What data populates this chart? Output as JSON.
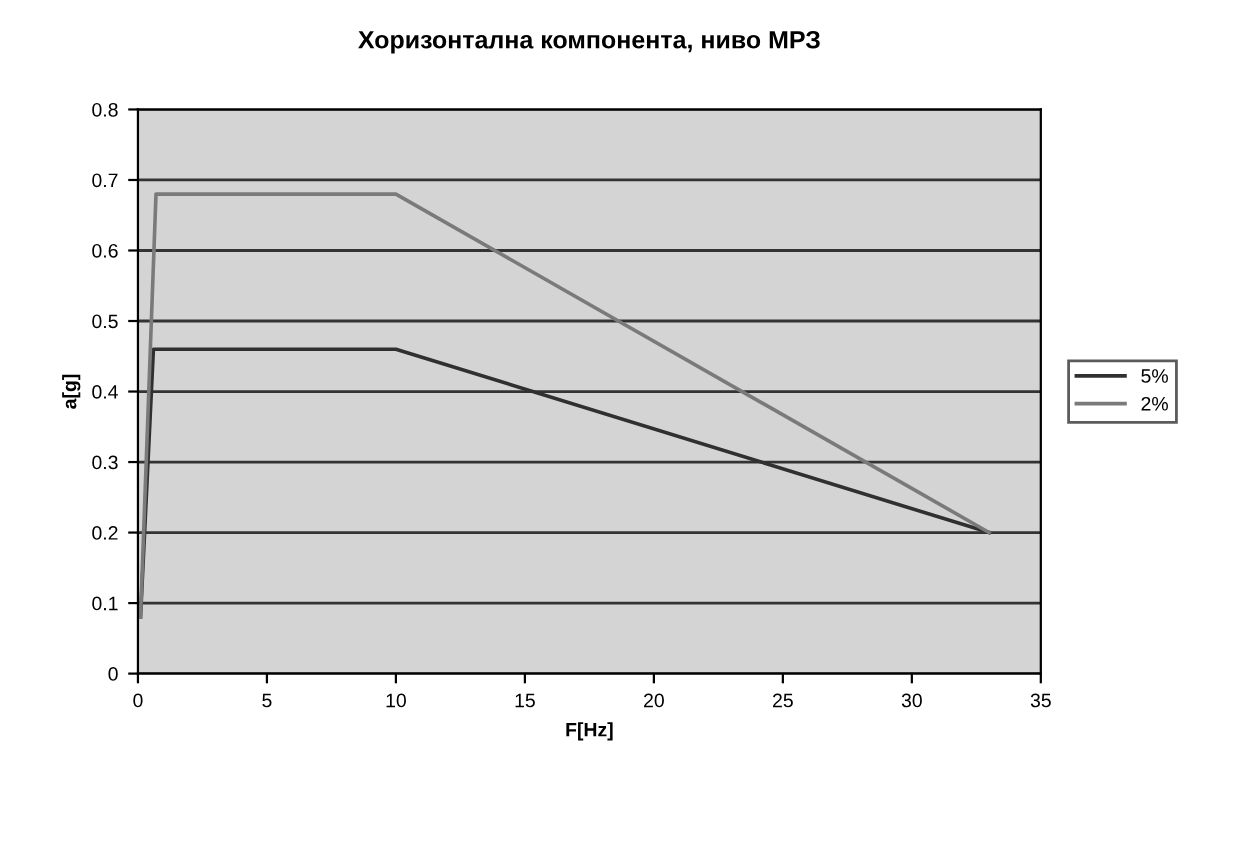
{
  "chart_data": {
    "type": "line",
    "title": "Хоризонтална компонента, ниво МРЗ",
    "xlabel": "F[Hz]",
    "ylabel": "a[g]",
    "xlim": [
      0,
      35
    ],
    "xticks": [
      0,
      5,
      10,
      15,
      20,
      25,
      30,
      35
    ],
    "ylim": [
      0,
      0.8
    ],
    "yticks": [
      0,
      0.1,
      0.2,
      0.3,
      0.4,
      0.5,
      0.6,
      0.7,
      0.8
    ],
    "grid": "y",
    "legend": "right",
    "marker": "none",
    "line_style": "solid",
    "series": [
      {
        "name": "5%",
        "color": "#303030",
        "x": [
          0.1,
          0.6,
          10,
          33
        ],
        "values": [
          0.08,
          0.46,
          0.46,
          0.2
        ]
      },
      {
        "name": "2%",
        "color": "#7a7a7a",
        "x": [
          0.1,
          0.7,
          10,
          33
        ],
        "values": [
          0.08,
          0.68,
          0.68,
          0.2
        ]
      }
    ]
  }
}
